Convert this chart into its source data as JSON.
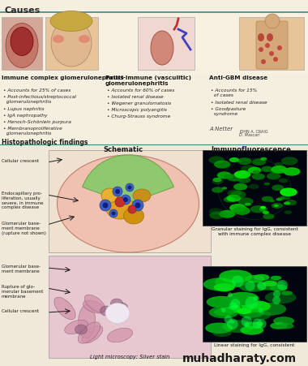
{
  "title": "Causes",
  "bg_color": "#f5efe0",
  "teal_line_color": "#3a8a8a",
  "col1_header": "Immune complex glomerulonephritis",
  "col1_bullets": [
    "Accounts for 25% of cases",
    "Post-infectious/streptococcal\n  glomerulonephritis",
    "Lupus nephritis",
    "IgA nephropathy",
    "Henoch-Schönlein purpura",
    "Membranoproliferative\n  glomerulonephritis"
  ],
  "col2_header": "Pauci-immune (vasculitic)\nglomerulonephritis",
  "col2_bullets": [
    "Accounts for 60% of cases",
    "Isolated renal disease",
    "Wegener granulomatosis",
    "Microscopic polyangitis",
    "Churg-Strauss syndrome"
  ],
  "col3_header": "Anti-GBM disease",
  "col3_bullets": [
    "Accounts for 15%\n  of cases",
    "Isolated renal disease",
    "Goodpasture\n  syndrome"
  ],
  "histo_label": "Histopathologic findings",
  "schematic_label": "Schematic",
  "lm_label": "Light microscopy: Silver stain",
  "if_label": "Immunofluorescence",
  "granular_caption": "Granular staining for IgG, consistent\nwith immune complex disease",
  "linear_caption": "Linear staining for IgG, consistent",
  "watermark": "muhadharaty.com",
  "sig1": "A Netter",
  "sig2": "JOHN A. CRAIG",
  "sig3": "D. Mascari"
}
